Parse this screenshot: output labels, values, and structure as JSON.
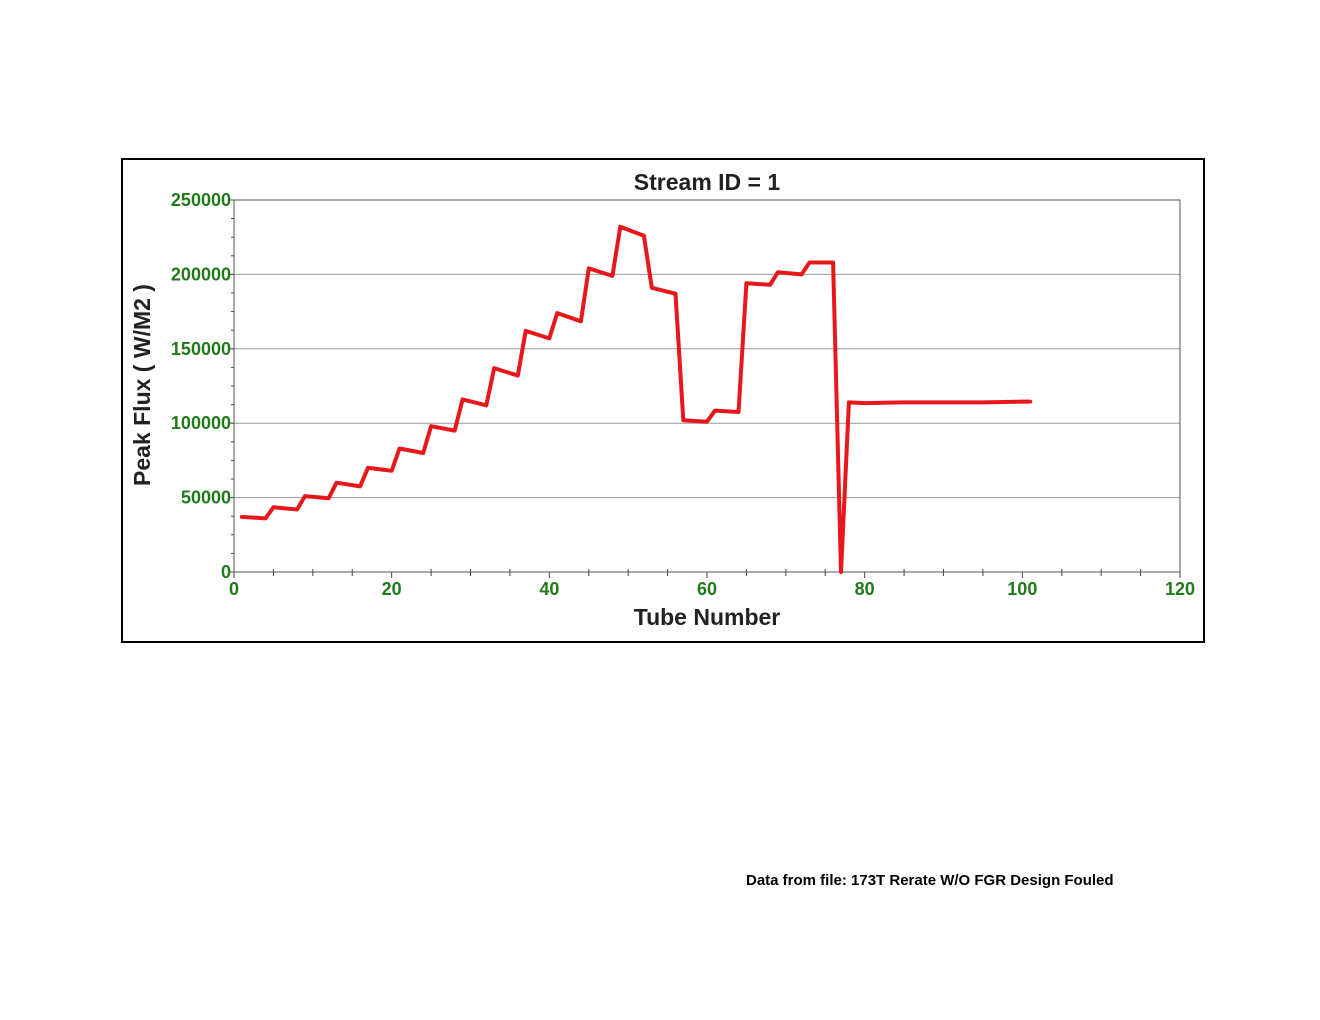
{
  "footer": {
    "source_label": "Data from file: 173T Rerate W/O FGR Design Fouled"
  },
  "colors": {
    "series": "#e8171b",
    "tick_labels": "#217a1a",
    "axis_title": "#222222",
    "grid": "#9a9a9a"
  },
  "chart_data": {
    "type": "line",
    "title": "Stream ID = 1",
    "xlabel": "Tube Number",
    "ylabel": "Peak Flux ( W/M2 )",
    "xlim": [
      0,
      120
    ],
    "ylim": [
      0,
      250000
    ],
    "xticks": [
      0,
      20,
      40,
      60,
      80,
      100,
      120
    ],
    "yticks": [
      0,
      50000,
      100000,
      150000,
      200000,
      250000
    ],
    "xtick_labels": [
      "0",
      "20",
      "40",
      "60",
      "80",
      "100",
      "120"
    ],
    "ytick_labels": [
      "0",
      "50000",
      "100000",
      "150000",
      "200000",
      "250000"
    ],
    "grid": "horizontal",
    "legend": "none",
    "series": [
      {
        "color": "#e8171b",
        "x": [
          1,
          4,
          5,
          8,
          9,
          12,
          13,
          16,
          17,
          20,
          21,
          24,
          25,
          28,
          29,
          32,
          33,
          36,
          37,
          40,
          41,
          44,
          45,
          48,
          49,
          52,
          53,
          56,
          57,
          60,
          61,
          64,
          65,
          68,
          69,
          72,
          73,
          76,
          77,
          78,
          80,
          85,
          90,
          95,
          100,
          101
        ],
        "y": [
          37000,
          36000,
          43500,
          42000,
          51000,
          49500,
          60000,
          57500,
          70000,
          68000,
          83000,
          80000,
          98000,
          95000,
          116000,
          112000,
          137000,
          132000,
          162000,
          157000,
          174000,
          168500,
          204000,
          199000,
          232000,
          226000,
          191000,
          187000,
          102000,
          101000,
          108500,
          107500,
          194000,
          193000,
          201500,
          200000,
          208000,
          208000,
          0,
          114000,
          113500,
          114000,
          114000,
          114000,
          114500,
          114500
        ]
      }
    ]
  }
}
